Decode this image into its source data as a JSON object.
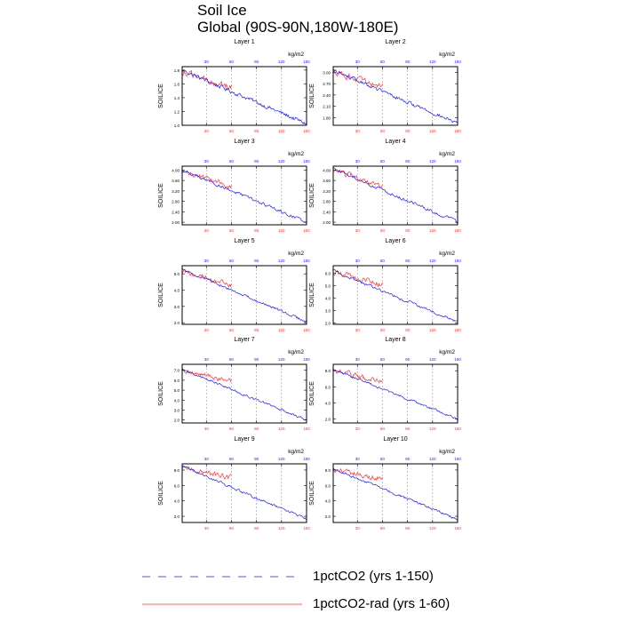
{
  "title": "Soil Ice",
  "subtitle": "Global (90S-90N,180W-180E)",
  "legend": [
    {
      "name": "1pctCO2 (yrs 1-150)",
      "color": "#1a1aff",
      "style": "dashed"
    },
    {
      "name": "1pctCO2-rad (yrs 1-60)",
      "color": "#ff3333",
      "style": "solid"
    }
  ],
  "colors": {
    "series1": "#1a1aff",
    "series2": "#ff3333",
    "axis": "#000000",
    "grid": "#999999",
    "bottom_ticks": "#ff3333",
    "top_ticks": "#1a1aff"
  },
  "chart_data": [
    {
      "type": "line",
      "title": "Layer 1",
      "ylabel": "SOILICE",
      "units": "kg/m2",
      "xlim": [
        1,
        150
      ],
      "ylim": [
        1.0,
        1.85
      ],
      "yticks": [
        "1.0",
        "1.2",
        "1.4",
        "1.6",
        "1.8"
      ],
      "ytick_values": [
        1.0,
        1.2,
        1.4,
        1.6,
        1.8
      ],
      "xticks_bottom": [
        "30",
        "60",
        "90",
        "120",
        "150"
      ],
      "xticks_top": [
        "30",
        "60",
        "90",
        "120",
        "150"
      ],
      "series": [
        {
          "start": 1.8,
          "end": 1.02,
          "noise": 0.025,
          "length": 150
        },
        {
          "start": 1.78,
          "end": 1.55,
          "noise": 0.04,
          "length": 60
        }
      ]
    },
    {
      "type": "line",
      "title": "Layer 2",
      "ylabel": "SOILICE",
      "units": "kg/m2",
      "xlim": [
        1,
        150
      ],
      "ylim": [
        1.6,
        3.15
      ],
      "yticks": [
        "1.80",
        "2.10",
        "2.40",
        "2.70",
        "3.00"
      ],
      "ytick_values": [
        1.8,
        2.1,
        2.4,
        2.7,
        3.0
      ],
      "xticks_bottom": [
        "30",
        "60",
        "90",
        "120",
        "150"
      ],
      "xticks_top": [
        "30",
        "60",
        "90",
        "120",
        "150"
      ],
      "series": [
        {
          "start": 3.05,
          "end": 1.65,
          "noise": 0.04,
          "length": 150
        },
        {
          "start": 3.02,
          "end": 2.62,
          "noise": 0.07,
          "length": 60
        }
      ]
    },
    {
      "type": "line",
      "title": "Layer 3",
      "ylabel": "SOILICE",
      "units": "kg/m2",
      "xlim": [
        1,
        150
      ],
      "ylim": [
        1.9,
        4.15
      ],
      "yticks": [
        "2.00",
        "2.40",
        "2.80",
        "3.20",
        "3.60",
        "4.00"
      ],
      "ytick_values": [
        2.0,
        2.4,
        2.8,
        3.2,
        3.6,
        4.0
      ],
      "xticks_bottom": [
        "30",
        "60",
        "90",
        "120",
        "150"
      ],
      "xticks_top": [
        "30",
        "60",
        "90",
        "120",
        "150"
      ],
      "series": [
        {
          "start": 4.0,
          "end": 2.0,
          "noise": 0.05,
          "length": 150
        },
        {
          "start": 3.95,
          "end": 3.35,
          "noise": 0.08,
          "length": 60
        }
      ]
    },
    {
      "type": "line",
      "title": "Layer 4",
      "ylabel": "SOILICE",
      "units": "kg/m2",
      "xlim": [
        1,
        150
      ],
      "ylim": [
        1.9,
        4.15
      ],
      "yticks": [
        "2.00",
        "2.40",
        "2.80",
        "3.20",
        "3.60",
        "4.00"
      ],
      "ytick_values": [
        2.0,
        2.4,
        2.8,
        3.2,
        3.6,
        4.0
      ],
      "xticks_bottom": [
        "30",
        "60",
        "90",
        "120",
        "150"
      ],
      "xticks_top": [
        "30",
        "60",
        "90",
        "120",
        "150"
      ],
      "series": [
        {
          "start": 4.05,
          "end": 2.0,
          "noise": 0.05,
          "length": 150
        },
        {
          "start": 4.0,
          "end": 3.35,
          "noise": 0.09,
          "length": 60
        }
      ]
    },
    {
      "type": "line",
      "title": "Layer 5",
      "ylabel": "SOILICE",
      "units": "kg/m2",
      "xlim": [
        1,
        150
      ],
      "ylim": [
        1.9,
        5.5
      ],
      "yticks": [
        "2.0",
        "3.0",
        "4.0",
        "5.0"
      ],
      "ytick_values": [
        2.0,
        3.0,
        4.0,
        5.0
      ],
      "xticks_bottom": [
        "30",
        "60",
        "90",
        "120",
        "150"
      ],
      "xticks_top": [
        "30",
        "60",
        "90",
        "120",
        "150"
      ],
      "series": [
        {
          "start": 5.3,
          "end": 2.05,
          "noise": 0.07,
          "length": 150
        },
        {
          "start": 5.2,
          "end": 4.3,
          "noise": 0.12,
          "length": 60
        }
      ]
    },
    {
      "type": "line",
      "title": "Layer 6",
      "ylabel": "SOILICE",
      "units": "kg/m2",
      "xlim": [
        1,
        150
      ],
      "ylim": [
        1.9,
        6.6
      ],
      "yticks": [
        "2.0",
        "3.0",
        "4.0",
        "5.0",
        "6.0"
      ],
      "ytick_values": [
        2.0,
        3.0,
        4.0,
        5.0,
        6.0
      ],
      "xticks_bottom": [
        "30",
        "60",
        "90",
        "120",
        "150"
      ],
      "xticks_top": [
        "30",
        "60",
        "90",
        "120",
        "150"
      ],
      "series": [
        {
          "start": 6.2,
          "end": 2.1,
          "noise": 0.09,
          "length": 150
        },
        {
          "start": 6.1,
          "end": 5.1,
          "noise": 0.18,
          "length": 60
        }
      ]
    },
    {
      "type": "line",
      "title": "Layer 7",
      "ylabel": "SOILICE",
      "units": "kg/m2",
      "xlim": [
        1,
        150
      ],
      "ylim": [
        1.7,
        7.6
      ],
      "yticks": [
        "2.0",
        "3.0",
        "4.0",
        "5.0",
        "6.0",
        "7.0"
      ],
      "ytick_values": [
        2.0,
        3.0,
        4.0,
        5.0,
        6.0,
        7.0
      ],
      "xticks_bottom": [
        "30",
        "60",
        "90",
        "120",
        "150"
      ],
      "xticks_top": [
        "30",
        "60",
        "90",
        "120",
        "150"
      ],
      "series": [
        {
          "start": 7.1,
          "end": 2.0,
          "noise": 0.1,
          "length": 150
        },
        {
          "start": 7.0,
          "end": 5.9,
          "noise": 0.2,
          "length": 60
        }
      ]
    },
    {
      "type": "line",
      "title": "Layer 8",
      "ylabel": "SOILICE",
      "units": "kg/m2",
      "xlim": [
        1,
        150
      ],
      "ylim": [
        1.5,
        8.8
      ],
      "yticks": [
        "2.0",
        "4.0",
        "6.0",
        "8.0"
      ],
      "ytick_values": [
        2.0,
        4.0,
        6.0,
        8.0
      ],
      "xticks_bottom": [
        "30",
        "60",
        "90",
        "120",
        "150"
      ],
      "xticks_top": [
        "30",
        "60",
        "90",
        "120",
        "150"
      ],
      "series": [
        {
          "start": 8.2,
          "end": 2.0,
          "noise": 0.12,
          "length": 150
        },
        {
          "start": 8.1,
          "end": 6.6,
          "noise": 0.28,
          "length": 60
        }
      ]
    },
    {
      "type": "line",
      "title": "Layer 9",
      "ylabel": "SOILICE",
      "units": "kg/m2",
      "xlim": [
        1,
        150
      ],
      "ylim": [
        1.2,
        8.8
      ],
      "yticks": [
        "2.0",
        "4.0",
        "6.0",
        "8.0"
      ],
      "ytick_values": [
        2.0,
        4.0,
        6.0,
        8.0
      ],
      "xticks_bottom": [
        "30",
        "60",
        "90",
        "120",
        "150"
      ],
      "xticks_top": [
        "30",
        "60",
        "90",
        "120",
        "150"
      ],
      "series": [
        {
          "start": 8.5,
          "end": 1.6,
          "noise": 0.13,
          "length": 150
        },
        {
          "start": 8.4,
          "end": 7.0,
          "noise": 0.3,
          "length": 60
        }
      ]
    },
    {
      "type": "line",
      "title": "Layer 10",
      "ylabel": "SOILICE",
      "units": "kg/m2",
      "xlim": [
        1,
        150
      ],
      "ylim": [
        1.2,
        8.8
      ],
      "yticks": [
        "2.0",
        "4.0",
        "6.0",
        "8.0"
      ],
      "ytick_values": [
        2.0,
        4.0,
        6.0,
        8.0
      ],
      "xticks_bottom": [
        "30",
        "60",
        "90",
        "120",
        "150"
      ],
      "xticks_top": [
        "30",
        "60",
        "90",
        "120",
        "150"
      ],
      "series": [
        {
          "start": 8.2,
          "end": 1.6,
          "noise": 0.13,
          "length": 150
        },
        {
          "start": 8.1,
          "end": 6.8,
          "noise": 0.3,
          "length": 60
        }
      ]
    }
  ]
}
